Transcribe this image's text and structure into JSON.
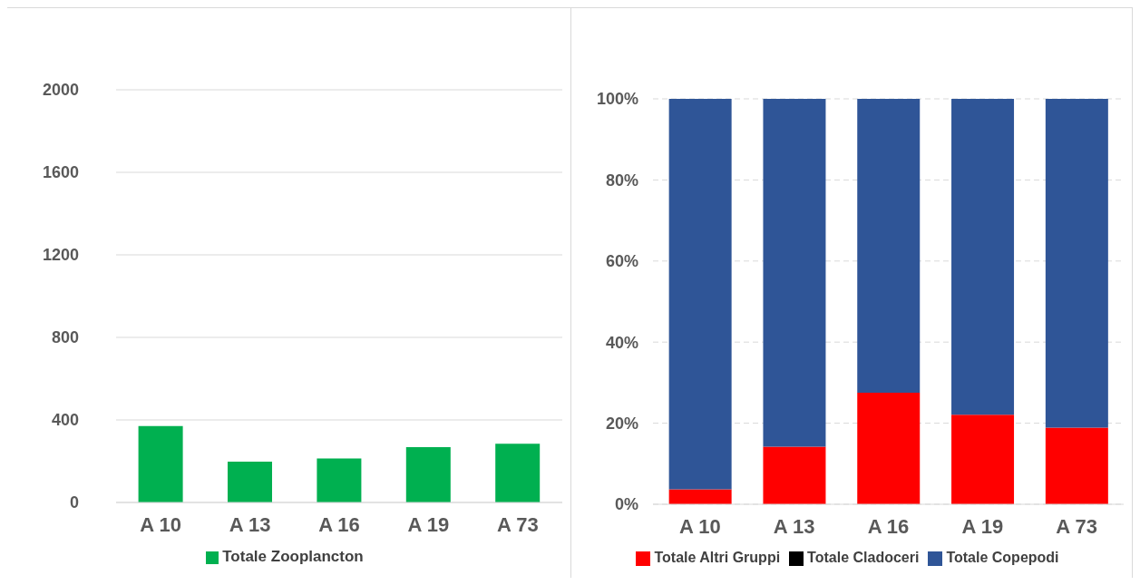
{
  "chart_data": [
    {
      "type": "bar",
      "categories": [
        "A 10",
        "A 13",
        "A 16",
        "A 19",
        "A 73"
      ],
      "series": [
        {
          "name": "Totale Zooplancton",
          "color": "#00b050",
          "values": [
            370,
            198,
            213,
            268,
            285
          ]
        }
      ],
      "ylim": [
        0,
        2000
      ],
      "yticks": [
        0,
        400,
        800,
        1200,
        1600,
        2000
      ],
      "grid": "y",
      "legend": "bottom"
    },
    {
      "type": "bar",
      "stacked": true,
      "categories": [
        "A 10",
        "A 13",
        "A 16",
        "A 19",
        "A 73"
      ],
      "series": [
        {
          "name": "Totale Altri Gruppi",
          "color": "#ff0000",
          "values": [
            3.7,
            14.2,
            27.5,
            22.1,
            18.9
          ]
        },
        {
          "name": "Totale Cladoceri",
          "color": "#000000",
          "values": [
            0,
            0,
            0,
            0,
            0
          ]
        },
        {
          "name": "Totale Copepodi",
          "color": "#2f5597",
          "values": [
            96.3,
            85.8,
            72.5,
            77.9,
            81.1
          ]
        }
      ],
      "ylim": [
        0,
        100
      ],
      "yticks": [
        {
          "value": 0,
          "label": "0%"
        },
        {
          "value": 20,
          "label": "20%"
        },
        {
          "value": 40,
          "label": "40%"
        },
        {
          "value": 60,
          "label": "60%"
        },
        {
          "value": 80,
          "label": "80%"
        },
        {
          "value": 100,
          "label": "100%"
        }
      ],
      "grid": "y",
      "line_style": "dashed",
      "legend": "bottom"
    }
  ]
}
